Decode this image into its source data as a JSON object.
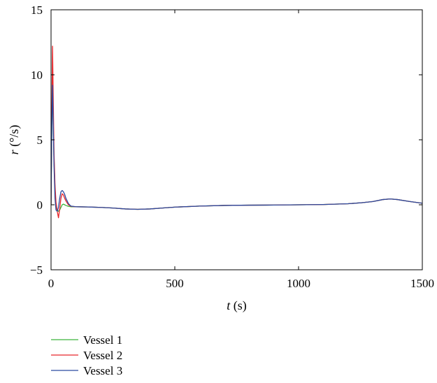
{
  "chart_data": {
    "type": "line",
    "title": "",
    "xlabel_var": "t",
    "xlabel_unit": " (s)",
    "ylabel_var": "r",
    "ylabel_unit": " (°/s)",
    "xlim": [
      0,
      1500
    ],
    "ylim": [
      -5,
      15
    ],
    "xticks": [
      0,
      500,
      1000,
      1500
    ],
    "yticks": [
      -5,
      0,
      5,
      10,
      15
    ],
    "grid": false,
    "legend_position": "bottom-left outside",
    "series": [
      {
        "name": "Vessel 1",
        "color": "#3cb43c",
        "x": [
          0,
          3,
          6,
          9,
          12,
          16,
          20,
          25,
          30,
          35,
          40,
          45,
          50,
          55,
          60,
          70,
          80,
          100,
          150,
          200,
          250,
          300,
          350,
          400,
          450,
          500,
          600,
          700,
          800,
          900,
          1000,
          1100,
          1200,
          1250,
          1300,
          1340,
          1370,
          1400,
          1450,
          1500
        ],
        "y": [
          0,
          6.0,
          9.0,
          6.0,
          3.5,
          1.2,
          -0.2,
          -0.4,
          -0.5,
          -0.4,
          -0.2,
          0.0,
          0.05,
          0.0,
          -0.05,
          -0.12,
          -0.15,
          -0.15,
          -0.17,
          -0.2,
          -0.25,
          -0.32,
          -0.35,
          -0.32,
          -0.25,
          -0.18,
          -0.1,
          -0.05,
          -0.03,
          -0.02,
          0.0,
          0.02,
          0.08,
          0.15,
          0.25,
          0.4,
          0.45,
          0.4,
          0.25,
          0.12
        ]
      },
      {
        "name": "Vessel 2",
        "color": "#e8262b",
        "x": [
          0,
          3,
          6,
          9,
          12,
          16,
          20,
          25,
          30,
          35,
          40,
          45,
          50,
          55,
          60,
          70,
          80,
          100,
          150,
          200,
          250,
          300,
          350,
          400,
          450,
          500,
          600,
          700,
          800,
          900,
          1000,
          1100,
          1200,
          1250,
          1300,
          1340,
          1370,
          1400,
          1450,
          1500
        ],
        "y": [
          0,
          7.0,
          12.2,
          8.0,
          4.0,
          1.5,
          0.2,
          -0.5,
          -1.0,
          -0.3,
          0.5,
          0.85,
          0.75,
          0.5,
          0.3,
          0.0,
          -0.12,
          -0.15,
          -0.17,
          -0.2,
          -0.25,
          -0.32,
          -0.35,
          -0.32,
          -0.25,
          -0.18,
          -0.1,
          -0.05,
          -0.03,
          -0.02,
          0.0,
          0.02,
          0.08,
          0.15,
          0.25,
          0.4,
          0.45,
          0.4,
          0.25,
          0.12
        ]
      },
      {
        "name": "Vessel 3",
        "color": "#2b4aa0",
        "x": [
          0,
          3,
          6,
          9,
          12,
          16,
          20,
          25,
          30,
          35,
          40,
          45,
          50,
          55,
          60,
          70,
          80,
          100,
          150,
          200,
          250,
          300,
          350,
          400,
          450,
          500,
          600,
          700,
          800,
          900,
          1000,
          1100,
          1200,
          1250,
          1300,
          1340,
          1370,
          1400,
          1450,
          1500
        ],
        "y": [
          0,
          6.0,
          9.2,
          6.0,
          3.0,
          0.5,
          -0.4,
          -0.5,
          -0.2,
          0.5,
          1.0,
          1.1,
          1.0,
          0.8,
          0.5,
          0.1,
          -0.1,
          -0.15,
          -0.17,
          -0.2,
          -0.25,
          -0.32,
          -0.35,
          -0.32,
          -0.25,
          -0.18,
          -0.1,
          -0.05,
          -0.03,
          -0.02,
          0.0,
          0.02,
          0.08,
          0.15,
          0.25,
          0.4,
          0.45,
          0.4,
          0.25,
          0.12
        ]
      }
    ]
  }
}
